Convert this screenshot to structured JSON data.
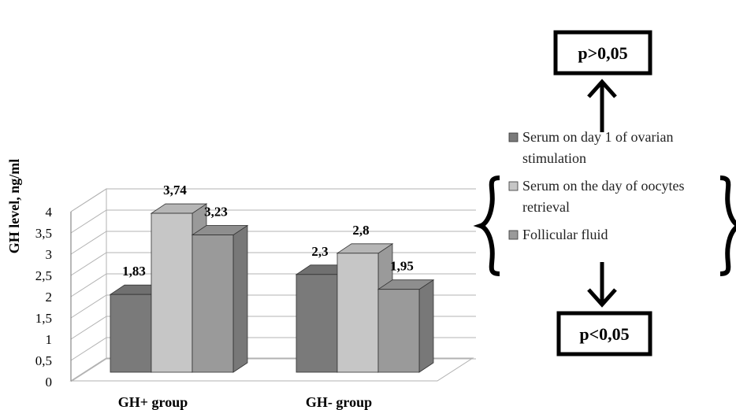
{
  "chart_data": {
    "type": "bar",
    "ylabel": "GH level, ng/ml",
    "ylim": [
      0,
      4
    ],
    "ytick_step": 0.5,
    "categories": [
      "GH+ group",
      "GH- group"
    ],
    "series": [
      {
        "name": "Serum on day 1 of ovarian stimulation",
        "values": [
          1.83,
          2.3
        ],
        "value_labels": [
          "1,83",
          "2,3"
        ],
        "color": "#7a7a7a"
      },
      {
        "name": "Serum on the day of oocytes retrieval",
        "values": [
          3.74,
          2.8
        ],
        "value_labels": [
          "3,74",
          "2,8"
        ],
        "color": "#c6c6c6"
      },
      {
        "name": "Follicular fluid",
        "values": [
          3.23,
          1.95
        ],
        "value_labels": [
          "3,23",
          "1,95"
        ],
        "color": "#9a9a9a"
      }
    ],
    "legend_lines": [
      [
        "Serum on day 1 of ovarian",
        "stimulation"
      ],
      [
        "Serum on the day of oocytes",
        "retrieval"
      ],
      [
        "Follicular fluid"
      ]
    ],
    "grid": true,
    "style": "3d-clustered-column",
    "legend_position": "right"
  },
  "annotations": {
    "upper_box": "p>0,05",
    "lower_box": "p<0,05"
  }
}
